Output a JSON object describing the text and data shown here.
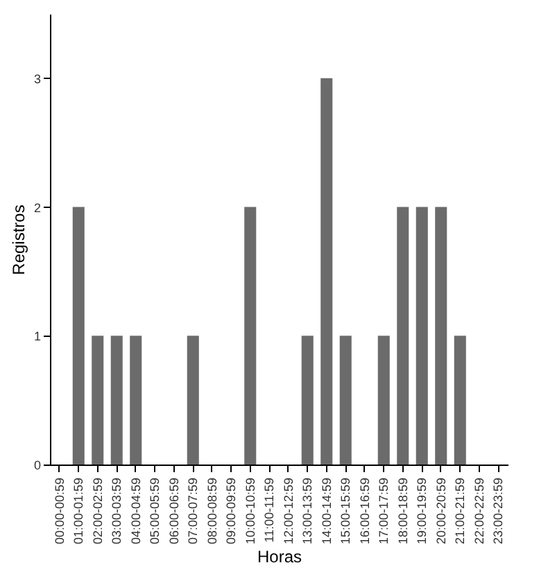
{
  "chart_data": {
    "type": "bar",
    "xlabel": "Horas",
    "ylabel": "Registros",
    "categories": [
      "00:00-00:59",
      "01:00-01:59",
      "02:00-02:59",
      "03:00-03:59",
      "04:00-04:59",
      "05:00-05:59",
      "06:00-06:59",
      "07:00-07:59",
      "08:00-08:59",
      "09:00-09:59",
      "10:00-10:59",
      "11:00-11:59",
      "12:00-12:59",
      "13:00-13:59",
      "14:00-14:59",
      "15:00-15:59",
      "16:00-16:59",
      "17:00-17:59",
      "18:00-18:59",
      "19:00-19:59",
      "20:00-20:59",
      "21:00-21:59",
      "22:00-22:59",
      "23:00-23:59"
    ],
    "values": [
      0,
      2,
      1,
      1,
      1,
      0,
      0,
      1,
      0,
      0,
      2,
      0,
      0,
      1,
      3,
      1,
      0,
      1,
      2,
      2,
      2,
      1,
      0,
      0
    ],
    "color": "#6b6b6b",
    "ylim": [
      0,
      3.5
    ],
    "yticks": [
      0,
      1,
      2,
      3
    ],
    "grid": false
  }
}
